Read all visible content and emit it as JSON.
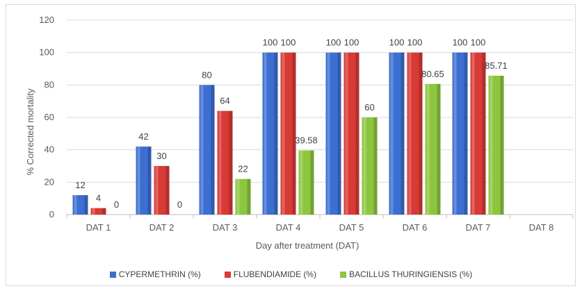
{
  "chart_data": {
    "type": "bar",
    "categories": [
      "DAT 1",
      "DAT 2",
      "DAT 3",
      "DAT 4",
      "DAT 5",
      "DAT 6",
      "DAT 7",
      "DAT 8"
    ],
    "series": [
      {
        "name": "CYPERMETHRIN  (%)",
        "color": "#3c6fd1",
        "values": [
          12,
          42,
          80,
          100,
          100,
          100,
          100,
          null
        ],
        "labels": [
          "12",
          "42",
          "80",
          "100",
          "100",
          "100",
          "100",
          ""
        ]
      },
      {
        "name": "FLUBENDIAMIDE  (%)",
        "color": "#d83a36",
        "values": [
          4,
          30,
          64,
          100,
          100,
          100,
          100,
          null
        ],
        "labels": [
          "4",
          "30",
          "64",
          "100",
          "100",
          "100",
          "100",
          ""
        ]
      },
      {
        "name": "BACILLUS THURINGIENSIS  (%)",
        "color": "#8cc63f",
        "values": [
          0,
          0,
          22,
          39.58,
          60,
          80.65,
          85.71,
          null
        ],
        "labels": [
          "0",
          "0",
          "22",
          "39.58",
          "60",
          "80.65",
          "85.71",
          ""
        ]
      }
    ],
    "xlabel": "Day after treatment (DAT)",
    "ylabel": "% Corrected mortality",
    "ylim": [
      0,
      120
    ],
    "yticks": [
      0,
      20,
      40,
      60,
      80,
      100,
      120
    ],
    "grid": true,
    "legend": "bottom"
  }
}
